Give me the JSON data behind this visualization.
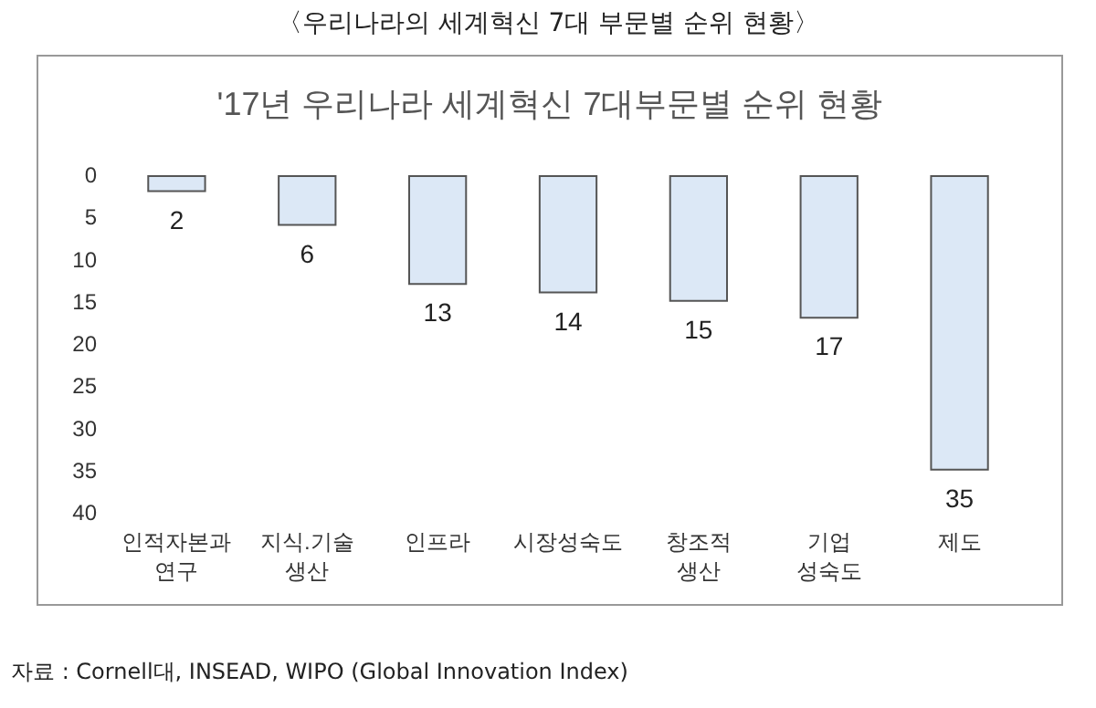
{
  "chart_data": {
    "type": "bar",
    "title": "〈우리나라의 세계혁신 7대 부문별 순위 현황〉",
    "subtitle": "'17년 우리나라 세계혁신 7대부문별 순위 현황",
    "categories": [
      "인적자본과\n연구",
      "지식.기술\n생산",
      "인프라",
      "시장성숙도",
      "창조적\n생산",
      "기업\n성숙도",
      "제도"
    ],
    "values": [
      2,
      6,
      13,
      14,
      15,
      17,
      35
    ],
    "color": "#dce8f6",
    "ylim": [
      40,
      0
    ],
    "yticks": [
      0,
      5,
      10,
      15,
      20,
      25,
      30,
      35,
      40
    ],
    "grid": false,
    "data_labels": true,
    "annotations": [
      "자료 : Cornell대, INSEAD, WIPO (Global Innovation Index)"
    ]
  }
}
